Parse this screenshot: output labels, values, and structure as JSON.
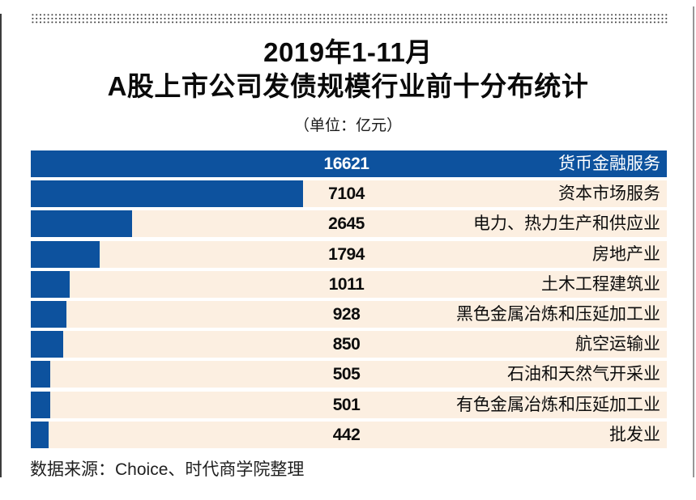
{
  "page": {
    "title_line1": "2019年1-11月",
    "title_line2": "A股上市公司发债规模行业前十分布统计",
    "subtitle": "（单位：亿元）",
    "source": "数据来源：Choice、时代商学院整理"
  },
  "chart_data": {
    "type": "bar",
    "orientation": "horizontal",
    "title": "2019年1-11月 A股上市公司发债规模行业前十分布统计",
    "subtitle": "（单位：亿元）",
    "unit": "亿元",
    "categories": [
      "货币金融服务",
      "资本市场服务",
      "电力、热力生产和供应业",
      "房地产业",
      "土木工程建筑业",
      "黑色金属冶炼和压延加工业",
      "航空运输业",
      "石油和天然气开采业",
      "有色金属冶炼和压延加工业",
      "批发业"
    ],
    "values": [
      16621,
      7104,
      2645,
      1794,
      1011,
      928,
      850,
      505,
      501,
      442
    ],
    "xlim": [
      0,
      16621
    ],
    "grid": false,
    "legend": "none",
    "value_labels": "shown, centered column",
    "category_labels": "right-aligned inside row",
    "bar_color": "#0d529e",
    "row_bg_color": "#fcefe1",
    "first_row_full_width_text_color": "#ffffff",
    "value_label_color": "#0d0d0d",
    "source": "数据来源：Choice、时代商学院整理"
  },
  "decorations": {
    "dotted_border_color": "#3a3a3a",
    "left_rule_color": "#3c3c3c",
    "right_rule_color": "#979797"
  }
}
